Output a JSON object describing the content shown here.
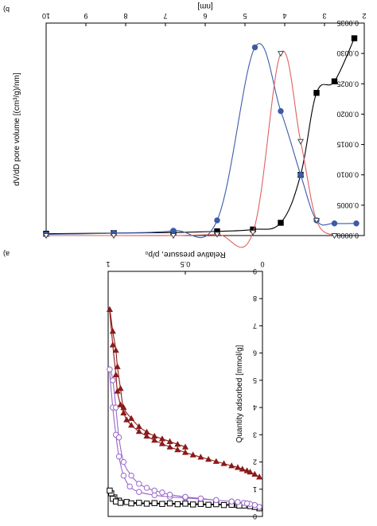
{
  "chart_data": [
    {
      "id": "top",
      "panel_label": "b)",
      "type": "line",
      "xlabel": "[nm]",
      "ylabel": "dV/dD pore volume [(cm³/g)/nm]",
      "xlim": [
        2,
        10
      ],
      "ylim": [
        0,
        0.0035
      ],
      "x_ticks": [
        2,
        3,
        4,
        5,
        6,
        7,
        8,
        9,
        10
      ],
      "x_tick_labels": [
        "2",
        "3",
        "4",
        "5",
        "6",
        "7",
        "8",
        "9",
        "10"
      ],
      "y_ticks": [
        0,
        0.0005,
        0.001,
        0.0015,
        0.002,
        0.0025,
        0.003,
        0.0035
      ],
      "y_tick_labels": [
        "0.0000",
        "0.0005",
        "0.0010",
        "0.0015",
        "0.0020",
        "0.0025",
        "0.0030",
        "0.0035"
      ],
      "series": [
        {
          "color": "#000000",
          "marker": "square-filled",
          "x": [
            2.25,
            2.75,
            3.2,
            3.6,
            4.1,
            4.8,
            5.7,
            6.8,
            8.3,
            10
          ],
          "y": [
            0.00325,
            0.00254,
            0.00235,
            0.001,
            0.00021,
            0.0001,
            7e-05,
            5e-05,
            4e-05,
            3e-05
          ]
        },
        {
          "color": "#3B5BA8",
          "marker": "circle-filled",
          "x": [
            2.2,
            2.75,
            3.2,
            3.6,
            4.1,
            4.75,
            5.7,
            6.8,
            8.3,
            10
          ],
          "y": [
            0.0002,
            0.0002,
            0.00025,
            0.001,
            0.00205,
            0.0031,
            0.00025,
            8e-05,
            4e-05,
            2e-05
          ]
        },
        {
          "color": "#E06060",
          "marker": "triangle-open",
          "x": [
            2.75,
            3.2,
            3.6,
            4.1,
            4.8,
            5.7,
            6.8,
            8.3,
            10
          ],
          "y": [
            0.0,
            0.00025,
            0.00155,
            0.003,
            5e-05,
            2e-05,
            0.0,
            0.0,
            0.0
          ]
        }
      ]
    },
    {
      "id": "bottom",
      "panel_label": "a)",
      "type": "line",
      "xlabel": "Relative pressure, p/p₀",
      "ylabel": "Quantity adsorbed [mmol/g]",
      "xlim": [
        0,
        1
      ],
      "ylim": [
        0,
        9
      ],
      "x_ticks": [
        0,
        0.5,
        1
      ],
      "x_tick_labels": [
        "0",
        "0.5",
        "1"
      ],
      "y_ticks": [
        0,
        1,
        2,
        3,
        4,
        5,
        6,
        7,
        8,
        9
      ],
      "y_tick_labels": [
        "0",
        "1",
        "2",
        "3",
        "4",
        "5",
        "6",
        "7",
        "8",
        "9"
      ],
      "series": [
        {
          "color": "#000000",
          "marker": "square-open",
          "x": [
            0.02,
            0.05,
            0.08,
            0.12,
            0.16,
            0.2,
            0.3,
            0.4,
            0.5,
            0.6,
            0.7,
            0.8,
            0.88,
            0.93,
            0.96,
            0.98,
            0.99,
            0.97,
            0.95,
            0.92,
            0.85,
            0.75,
            0.65,
            0.55,
            0.45,
            0.35,
            0.25,
            0.15
          ],
          "y": [
            0.3,
            0.35,
            0.38,
            0.4,
            0.42,
            0.43,
            0.45,
            0.46,
            0.47,
            0.48,
            0.49,
            0.5,
            0.53,
            0.58,
            0.7,
            0.85,
            0.95,
            0.65,
            0.55,
            0.5,
            0.48,
            0.47,
            0.46,
            0.45,
            0.44,
            0.43,
            0.42,
            0.4
          ]
        },
        {
          "color": "#9966CC",
          "marker": "circle-open",
          "x": [
            0.02,
            0.05,
            0.08,
            0.12,
            0.16,
            0.2,
            0.3,
            0.4,
            0.5,
            0.6,
            0.7,
            0.8,
            0.86,
            0.9,
            0.93,
            0.95,
            0.97,
            0.99,
            0.97,
            0.95,
            0.93,
            0.9,
            0.85,
            0.8,
            0.75,
            0.7,
            0.65,
            0.6,
            0.5,
            0.4,
            0.3,
            0.2,
            0.1
          ],
          "y": [
            0.35,
            0.42,
            0.46,
            0.5,
            0.53,
            0.55,
            0.6,
            0.64,
            0.68,
            0.72,
            0.78,
            0.9,
            1.1,
            1.5,
            2.2,
            3.0,
            4.0,
            5.4,
            5.0,
            4.0,
            2.9,
            2.0,
            1.5,
            1.2,
            1.05,
            0.95,
            0.88,
            0.8,
            0.72,
            0.66,
            0.6,
            0.55,
            0.48
          ]
        },
        {
          "color": "#8B1A1A",
          "marker": "triangle-down-filled",
          "x": [
            0.02,
            0.05,
            0.08,
            0.1,
            0.13,
            0.16,
            0.2,
            0.25,
            0.3,
            0.35,
            0.4,
            0.45,
            0.5,
            0.55,
            0.6,
            0.65,
            0.7,
            0.75,
            0.8,
            0.85,
            0.88,
            0.9,
            0.92,
            0.94,
            0.95,
            0.97,
            0.99,
            0.97,
            0.95,
            0.94,
            0.92,
            0.9,
            0.85,
            0.8,
            0.75,
            0.7,
            0.65,
            0.6,
            0.55,
            0.5
          ],
          "y": [
            1.45,
            1.55,
            1.63,
            1.68,
            1.74,
            1.8,
            1.86,
            1.94,
            2.02,
            2.1,
            2.18,
            2.26,
            2.35,
            2.45,
            2.55,
            2.67,
            2.8,
            2.95,
            3.12,
            3.35,
            3.55,
            3.8,
            4.1,
            4.6,
            5.2,
            6.3,
            7.6,
            6.8,
            6.1,
            5.5,
            4.7,
            4.0,
            3.6,
            3.3,
            3.1,
            2.95,
            2.85,
            2.75,
            2.65,
            2.55
          ]
        }
      ]
    }
  ]
}
